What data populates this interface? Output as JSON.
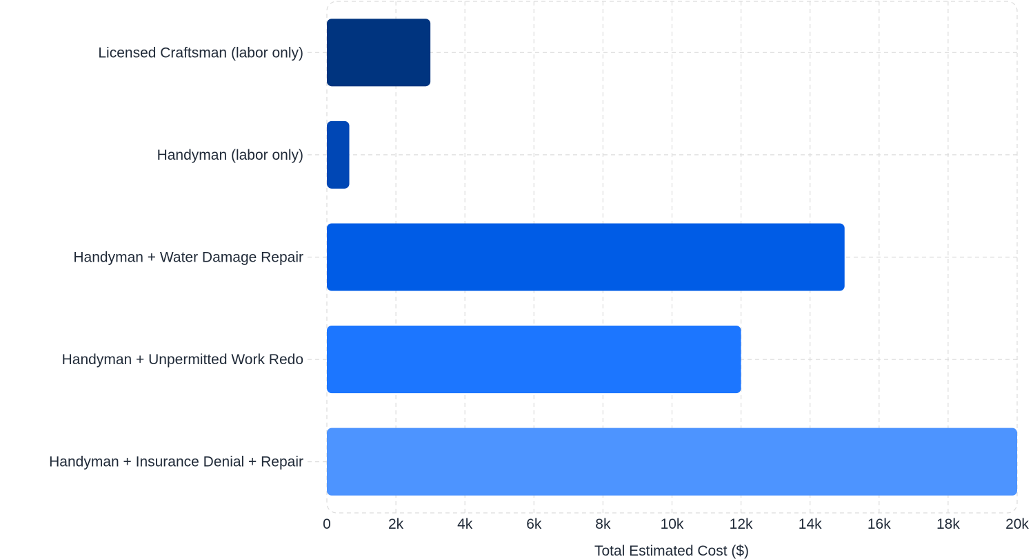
{
  "chart_data": {
    "type": "bar",
    "orientation": "horizontal",
    "categories": [
      "Licensed Craftsman (labor only)",
      "Handyman (labor only)",
      "Handyman + Water Damage Repair",
      "Handyman + Unpermitted Work Redo",
      "Handyman + Insurance Denial + Repair"
    ],
    "values": [
      3000,
      650,
      15000,
      12000,
      20000
    ],
    "colors": [
      "#00347f",
      "#0047b5",
      "#005ce6",
      "#1c76ff",
      "#4d94ff"
    ],
    "xlabel": "Total Estimated Cost ($)",
    "xlim": [
      0,
      20000
    ],
    "xticks": [
      0,
      2000,
      4000,
      6000,
      8000,
      10000,
      12000,
      14000,
      16000,
      18000,
      20000
    ],
    "xtick_labels": [
      "0",
      "2k",
      "4k",
      "6k",
      "8k",
      "10k",
      "12k",
      "14k",
      "16k",
      "18k",
      "20k"
    ],
    "grid": true,
    "legend": "none"
  }
}
